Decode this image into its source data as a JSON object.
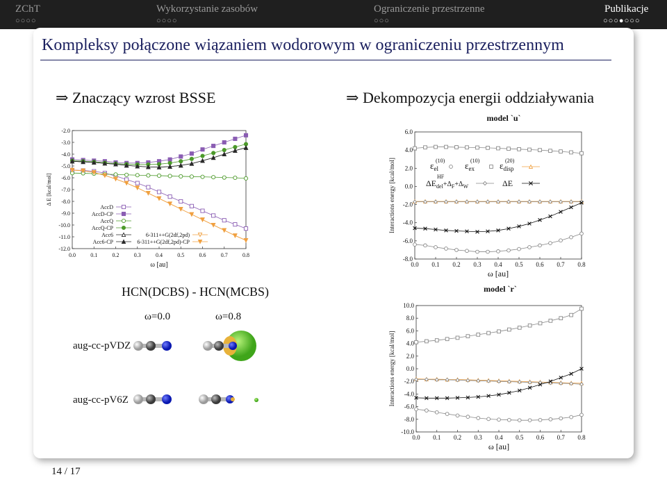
{
  "topbar": {
    "sections": [
      {
        "label": "ZChT",
        "dots": "○○○○",
        "active": false
      },
      {
        "label": "Wykorzystanie zasobów",
        "dots": "○○○○",
        "active": false
      },
      {
        "label": "Ograniczenie przestrzenne",
        "dots": "○○○",
        "active": false
      },
      {
        "label": "Publikacje",
        "dots": "○○○●○○○",
        "active": true
      }
    ]
  },
  "frame": {
    "title": "Kompleksy połączone wiązaniem wodorowym w ograniczeniu przestrzennym",
    "bullet_left": "Znaczący wzrost BSSE",
    "bullet_right": "Dekompozycja energii oddziaływania",
    "arrow": "⇒",
    "page": "14 / 17"
  },
  "molecules": {
    "caption": "HCN(DCBS) - HCN(MCBS)",
    "col1": "ω=0.0",
    "col2": "ω=0.8",
    "row1": "aug-cc-pVDZ",
    "row2": "aug-cc-pV6Z"
  },
  "colors": {
    "accent": "#1a1f5e",
    "topbar_bg": "#1f1f1f",
    "accD": "#8a5db3",
    "accQ": "#4c9a2a",
    "acc6": "#2a2a2a",
    "pople": "#f0a040",
    "gray": "#888888"
  },
  "chart_data": [
    {
      "type": "line",
      "xlabel": "ω [au]",
      "ylabel": "Δ E [kcal/mol]",
      "xlim": [
        0.0,
        0.8
      ],
      "ylim": [
        -12.0,
        -2.0
      ],
      "x_ticks": [
        "0.0",
        "0.1",
        "0.2",
        "0.3",
        "0.4",
        "0.5",
        "0.6",
        "0.7",
        "0.8"
      ],
      "y_ticks": [
        "-2.0",
        "-3.0",
        "-4.0",
        "-5.0",
        "-6.0",
        "-7.0",
        "-8.0",
        "-9.0",
        "-10.0",
        "-11.0",
        "-12.0"
      ],
      "x": [
        0.0,
        0.05,
        0.1,
        0.15,
        0.2,
        0.25,
        0.3,
        0.35,
        0.4,
        0.45,
        0.5,
        0.55,
        0.6,
        0.65,
        0.7,
        0.75,
        0.8
      ],
      "legend_placement": "bottom-left",
      "series": [
        {
          "name": "AccD",
          "marker": "square-open",
          "color": "#8a5db3",
          "values": [
            -5.35,
            -5.38,
            -5.45,
            -5.6,
            -5.85,
            -6.15,
            -6.45,
            -6.8,
            -7.2,
            -7.6,
            -8.0,
            -8.4,
            -8.8,
            -9.2,
            -9.6,
            -9.95,
            -10.3
          ]
        },
        {
          "name": "AccD-CP",
          "marker": "square-filled",
          "color": "#8a5db3",
          "values": [
            -4.45,
            -4.5,
            -4.55,
            -4.6,
            -4.7,
            -4.75,
            -4.75,
            -4.7,
            -4.6,
            -4.45,
            -4.2,
            -3.95,
            -3.6,
            -3.3,
            -3.0,
            -2.7,
            -2.4
          ]
        },
        {
          "name": "AccQ",
          "marker": "circle-open",
          "color": "#4c9a2a",
          "values": [
            -5.6,
            -5.62,
            -5.65,
            -5.7,
            -5.72,
            -5.75,
            -5.78,
            -5.8,
            -5.82,
            -5.85,
            -5.88,
            -5.9,
            -5.92,
            -5.95,
            -5.98,
            -6.0,
            -6.05
          ]
        },
        {
          "name": "AccQ-CP",
          "marker": "circle-filled",
          "color": "#4c9a2a",
          "values": [
            -4.55,
            -4.6,
            -4.65,
            -4.72,
            -4.8,
            -4.85,
            -4.88,
            -4.88,
            -4.85,
            -4.75,
            -4.6,
            -4.4,
            -4.15,
            -3.9,
            -3.65,
            -3.4,
            -3.15
          ]
        },
        {
          "name": "Acc6",
          "marker": "triangle-open",
          "color": "#2a2a2a",
          "values": [
            -4.6,
            -4.65,
            -4.7,
            -4.78,
            -4.85,
            -4.95,
            -5.02,
            -5.08,
            -5.1,
            -5.05,
            -4.95,
            -4.8,
            -4.55,
            -4.3,
            -4.0,
            -3.7,
            -3.45
          ]
        },
        {
          "name": "Acc6-CP",
          "marker": "triangle-filled",
          "color": "#2a2a2a",
          "values": [
            -4.6,
            -4.65,
            -4.7,
            -4.78,
            -4.85,
            -4.95,
            -5.02,
            -5.08,
            -5.1,
            -5.05,
            -4.95,
            -4.8,
            -4.55,
            -4.3,
            -4.0,
            -3.7,
            -3.45
          ]
        },
        {
          "name": "6-311++G(2df,2pd)",
          "marker": "triangle-down-open",
          "color": "#f0a040",
          "values": [
            -5.35,
            -5.4,
            -5.55,
            -5.8,
            -6.1,
            -6.45,
            -6.85,
            -7.3,
            -7.75,
            -8.2,
            -8.65,
            -9.1,
            -9.55,
            -10.0,
            -10.45,
            -10.9,
            -11.3
          ]
        },
        {
          "name": "6-311++G(2df,2pd)-CP",
          "marker": "triangle-down-filled",
          "color": "#f0a040",
          "values": [
            -5.35,
            -5.4,
            -5.55,
            -5.8,
            -6.1,
            -6.45,
            -6.85,
            -7.3,
            -7.75,
            -8.2,
            -8.65,
            -9.1,
            -9.55,
            -10.0,
            -10.45,
            -10.9,
            -11.3
          ]
        }
      ]
    },
    {
      "type": "line",
      "title": "model `u`",
      "xlabel": "ω [au]",
      "ylabel": "Interactions energy [kcal/mol]",
      "xlim": [
        0.0,
        0.8
      ],
      "ylim": [
        -8.0,
        6.0
      ],
      "x_ticks": [
        "0.0",
        "0.1",
        "0.2",
        "0.3",
        "0.4",
        "0.5",
        "0.6",
        "0.7",
        "0.8"
      ],
      "y_ticks": [
        "6.0",
        "4.0",
        "2.0",
        "0.0",
        "-2.0",
        "-4.0",
        "-6.0",
        "-8.0"
      ],
      "x": [
        0.0,
        0.05,
        0.1,
        0.15,
        0.2,
        0.25,
        0.3,
        0.35,
        0.4,
        0.45,
        0.5,
        0.55,
        0.6,
        0.65,
        0.7,
        0.75,
        0.8
      ],
      "legend_placement": "top-right",
      "legend_labels": {
        "el": {
          "sym": "ε",
          "sub": "el",
          "sup": "(10)"
        },
        "ex": {
          "sym": "ε",
          "sub": "ex",
          "sup": "(10)"
        },
        "disp": {
          "sym": "ε",
          "sub": "disp",
          "sup": "(20)"
        },
        "del": {
          "sym": "ΔE",
          "sub": "del",
          "sup": "HF",
          "extra": "+Δ",
          "extra2": "F",
          "extra3": "+Δ",
          "extra4": "W"
        },
        "total": "ΔE"
      },
      "series": [
        {
          "key": "ex",
          "marker": "square-open",
          "color": "#888888",
          "values": [
            4.2,
            4.3,
            4.35,
            4.35,
            4.32,
            4.3,
            4.28,
            4.25,
            4.2,
            4.15,
            4.1,
            4.05,
            4.0,
            3.92,
            3.85,
            3.75,
            3.65
          ]
        },
        {
          "key": "el",
          "marker": "circle-open",
          "color": "#888888",
          "values": [
            -6.4,
            -6.5,
            -6.7,
            -6.85,
            -7.0,
            -7.1,
            -7.2,
            -7.2,
            -7.15,
            -7.05,
            -6.9,
            -6.7,
            -6.5,
            -6.25,
            -5.95,
            -5.6,
            -5.2
          ]
        },
        {
          "key": "disp",
          "marker": "triangle-open",
          "color": "#f0a040",
          "values": [
            -1.65,
            -1.65,
            -1.65,
            -1.65,
            -1.65,
            -1.65,
            -1.65,
            -1.65,
            -1.65,
            -1.65,
            -1.65,
            -1.65,
            -1.65,
            -1.65,
            -1.65,
            -1.65,
            -1.65
          ]
        },
        {
          "key": "del",
          "marker": "diamond-open",
          "color": "#888888",
          "values": [
            -1.7,
            -1.7,
            -1.7,
            -1.7,
            -1.7,
            -1.7,
            -1.7,
            -1.7,
            -1.7,
            -1.7,
            -1.7,
            -1.7,
            -1.7,
            -1.7,
            -1.7,
            -1.7,
            -1.7
          ]
        },
        {
          "key": "total",
          "marker": "cross",
          "color": "#111111",
          "values": [
            -4.6,
            -4.65,
            -4.75,
            -4.85,
            -4.9,
            -4.95,
            -5.0,
            -4.95,
            -4.85,
            -4.65,
            -4.4,
            -4.1,
            -3.7,
            -3.3,
            -2.8,
            -2.3,
            -1.8
          ]
        }
      ]
    },
    {
      "type": "line",
      "title": "model `r`",
      "xlabel": "ω [au]",
      "ylabel": "Interactions energy [kcal/mol]",
      "xlim": [
        0.0,
        0.8
      ],
      "ylim": [
        -10.0,
        10.0
      ],
      "x_ticks": [
        "0.0",
        "0.1",
        "0.2",
        "0.3",
        "0.4",
        "0.5",
        "0.6",
        "0.7",
        "0.8"
      ],
      "y_ticks": [
        "10.0",
        "8.0",
        "6.0",
        "4.0",
        "2.0",
        "0.0",
        "-2.0",
        "-4.0",
        "-6.0",
        "-8.0",
        "-10.0"
      ],
      "x": [
        0.0,
        0.05,
        0.1,
        0.15,
        0.2,
        0.25,
        0.3,
        0.35,
        0.4,
        0.45,
        0.5,
        0.55,
        0.6,
        0.65,
        0.7,
        0.75,
        0.8
      ],
      "series": [
        {
          "key": "ex",
          "marker": "square-open",
          "color": "#888888",
          "values": [
            4.2,
            4.35,
            4.5,
            4.7,
            4.9,
            5.15,
            5.4,
            5.65,
            5.9,
            6.2,
            6.5,
            6.85,
            7.2,
            7.6,
            8.0,
            8.5,
            9.5
          ]
        },
        {
          "key": "el",
          "marker": "circle-open",
          "color": "#888888",
          "values": [
            -6.4,
            -6.6,
            -6.9,
            -7.15,
            -7.4,
            -7.6,
            -7.8,
            -7.95,
            -8.05,
            -8.1,
            -8.15,
            -8.15,
            -8.1,
            -8.0,
            -7.85,
            -7.65,
            -7.3
          ]
        },
        {
          "key": "disp",
          "marker": "triangle-open",
          "color": "#f0a040",
          "values": [
            -1.6,
            -1.65,
            -1.65,
            -1.7,
            -1.7,
            -1.75,
            -1.8,
            -1.85,
            -1.9,
            -1.95,
            -2.0,
            -2.05,
            -2.1,
            -2.15,
            -2.2,
            -2.25,
            -2.3
          ]
        },
        {
          "key": "del",
          "marker": "diamond-open",
          "color": "#888888",
          "values": [
            -1.7,
            -1.7,
            -1.75,
            -1.75,
            -1.8,
            -1.85,
            -1.9,
            -1.95,
            -2.0,
            -2.05,
            -2.1,
            -2.15,
            -2.2,
            -2.25,
            -2.3,
            -2.35,
            -2.45
          ]
        },
        {
          "key": "total",
          "marker": "cross",
          "color": "#111111",
          "values": [
            -4.6,
            -4.65,
            -4.65,
            -4.65,
            -4.6,
            -4.55,
            -4.45,
            -4.3,
            -4.1,
            -3.8,
            -3.45,
            -3.0,
            -2.5,
            -2.0,
            -1.4,
            -0.8,
            0.0
          ]
        }
      ]
    }
  ]
}
